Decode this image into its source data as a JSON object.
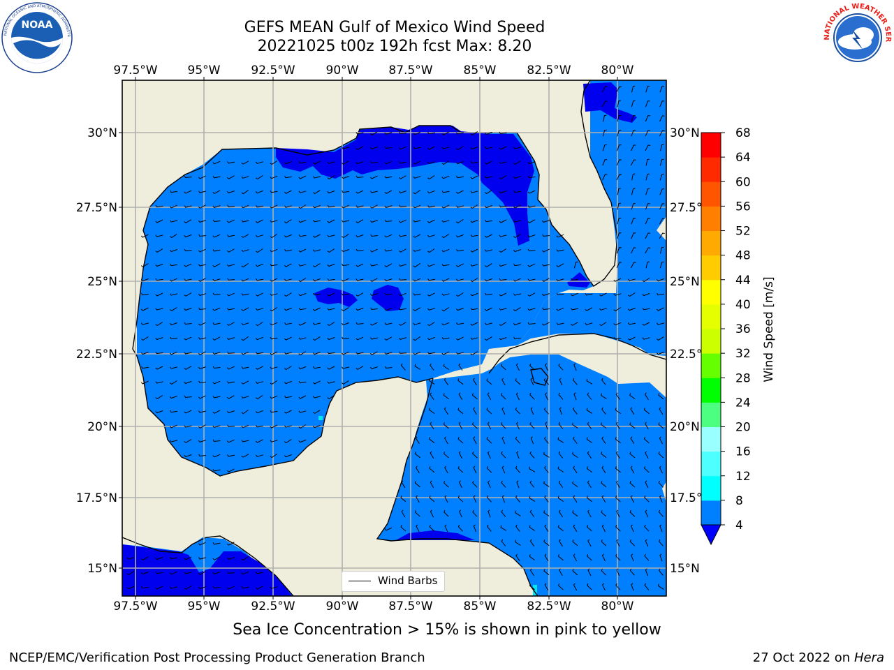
{
  "title": {
    "line1": "GEFS MEAN Gulf of Mexico Wind Speed",
    "line2": "20221025 t00z 192h fcst   Max: 8.20"
  },
  "logos": {
    "left": {
      "name": "NOAA",
      "ring_text": "NATIONAL OCEANIC AND ATMOSPHERIC ADMINISTRATION · U.S. DEPARTMENT OF COMMERCE"
    },
    "right": {
      "name": "NATIONAL WEATHER SERVICE"
    }
  },
  "map": {
    "lon_ticks": [
      "97.5°W",
      "95°W",
      "92.5°W",
      "90°W",
      "87.5°W",
      "85°W",
      "82.5°W",
      "80°W"
    ],
    "lat_ticks": [
      "30°N",
      "27.5°N",
      "25°N",
      "22.5°N",
      "20°N",
      "17.5°N",
      "15°N"
    ],
    "legend_label": "Wind Barbs",
    "colors": {
      "land": "#efeedd",
      "wind_4_8": "#0080ff",
      "wind_below_4": "#0000ee",
      "coast": "#000000"
    }
  },
  "colorbar": {
    "label": "Wind Speed [m/s]",
    "ticks": [
      "68",
      "64",
      "60",
      "56",
      "52",
      "48",
      "44",
      "40",
      "36",
      "32",
      "28",
      "24",
      "20",
      "16",
      "12",
      "8",
      "4"
    ],
    "colors": [
      "#0000ff",
      "#0080ff",
      "#00ffff",
      "#4dffff",
      "#99ffff",
      "#4dff80",
      "#00ff00",
      "#66ff00",
      "#ccff00",
      "#e6ff00",
      "#ffff00",
      "#ffcc00",
      "#ffaa00",
      "#ff8000",
      "#ff5500",
      "#ff2a00",
      "#ff0000"
    ]
  },
  "caption": "Sea Ice Concentration > 15% is shown in pink to yellow",
  "footer": {
    "left": "NCEP/EMC/Verification Post Processing Product Generation Branch",
    "right_date": "27 Oct 2022 on ",
    "right_host": "Hera"
  }
}
